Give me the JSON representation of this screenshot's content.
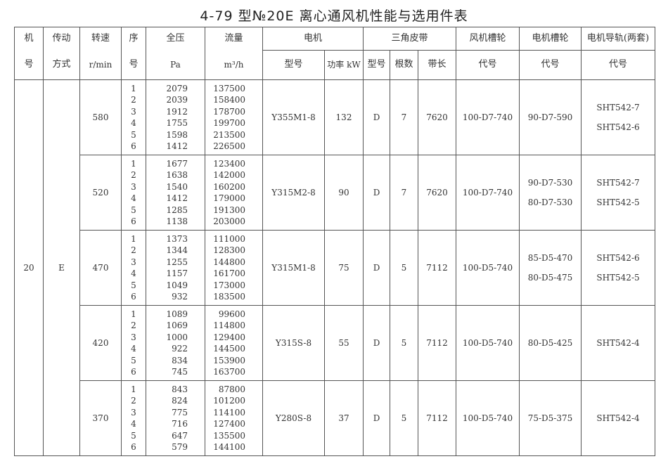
{
  "title": "4-79 型№20E 离心通风机性能与选用件表",
  "headers": {
    "machine_no": "机号",
    "drive": "传动方式",
    "speed": "转速",
    "speed_unit": "r/min",
    "seq": "序号",
    "pressure": "全压",
    "pressure_unit": "Pa",
    "flow": "流量",
    "flow_unit": "m³/h",
    "motor": "电机",
    "motor_model": "型号",
    "motor_power": "功率 kW",
    "belt": "三角皮带",
    "belt_type": "型号",
    "belt_count": "根数",
    "belt_length": "带长",
    "fan_pulley": "风机槽轮",
    "motor_pulley": "电机槽轮",
    "motor_rail": "电机导轨(两套)",
    "code": "代号"
  },
  "machine_no": "20",
  "drive": "E",
  "groups": [
    {
      "speed": "580",
      "seq": [
        "1",
        "2",
        "3",
        "4",
        "5",
        "6"
      ],
      "pressure": [
        "2079",
        "2039",
        "1912",
        "1755",
        "1598",
        "1412"
      ],
      "flow": [
        "137500",
        "158400",
        "178700",
        "199700",
        "213500",
        "226500"
      ],
      "motor_model": "Y355M1-8",
      "power": "132",
      "belt_type": "D",
      "belt_count": "7",
      "belt_length": "7620",
      "fan_pulley": "100-D7-740",
      "motor_pulley": [
        "90-D7-590"
      ],
      "rail": [
        "SHT542-7",
        "SHT542-6"
      ]
    },
    {
      "speed": "520",
      "seq": [
        "1",
        "2",
        "3",
        "4",
        "5",
        "6"
      ],
      "pressure": [
        "1677",
        "1638",
        "1540",
        "1412",
        "1285",
        "1138"
      ],
      "flow": [
        "123400",
        "142000",
        "160200",
        "179000",
        "191300",
        "203000"
      ],
      "motor_model": "Y315M2-8",
      "power": "90",
      "belt_type": "D",
      "belt_count": "7",
      "belt_length": "7620",
      "fan_pulley": "100-D7-740",
      "motor_pulley": [
        "90-D7-530",
        "80-D7-530"
      ],
      "rail": [
        "SHT542-7",
        "SHT542-5"
      ]
    },
    {
      "speed": "470",
      "seq": [
        "1",
        "2",
        "3",
        "4",
        "5",
        "6"
      ],
      "pressure": [
        "1373",
        "1344",
        "1255",
        "1157",
        "1049",
        "932"
      ],
      "flow": [
        "111000",
        "128300",
        "144800",
        "161700",
        "173000",
        "183500"
      ],
      "motor_model": "Y315M1-8",
      "power": "75",
      "belt_type": "D",
      "belt_count": "5",
      "belt_length": "7112",
      "fan_pulley": "100-D5-740",
      "motor_pulley": [
        "85-D5-470",
        "80-D5-475"
      ],
      "rail": [
        "SHT542-6",
        "SHT542-5"
      ]
    },
    {
      "speed": "420",
      "seq": [
        "1",
        "2",
        "3",
        "4",
        "5",
        "6"
      ],
      "pressure": [
        "1089",
        "1069",
        "1000",
        "922",
        "834",
        "745"
      ],
      "flow": [
        "99600",
        "114800",
        "129400",
        "144500",
        "153900",
        "163700"
      ],
      "motor_model": "Y315S-8",
      "power": "55",
      "belt_type": "D",
      "belt_count": "5",
      "belt_length": "7112",
      "fan_pulley": "100-D5-740",
      "motor_pulley": [
        "80-D5-425"
      ],
      "rail": [
        "SHT542-4"
      ]
    },
    {
      "speed": "370",
      "seq": [
        "1",
        "2",
        "3",
        "4",
        "5",
        "6"
      ],
      "pressure": [
        "843",
        "824",
        "775",
        "716",
        "647",
        "579"
      ],
      "flow": [
        "87800",
        "101200",
        "114100",
        "127400",
        "135500",
        "144100"
      ],
      "motor_model": "Y280S-8",
      "power": "37",
      "belt_type": "D",
      "belt_count": "5",
      "belt_length": "7112",
      "fan_pulley": "100-D5-740",
      "motor_pulley": [
        "75-D5-375"
      ],
      "rail": [
        "SHT542-4"
      ]
    }
  ]
}
